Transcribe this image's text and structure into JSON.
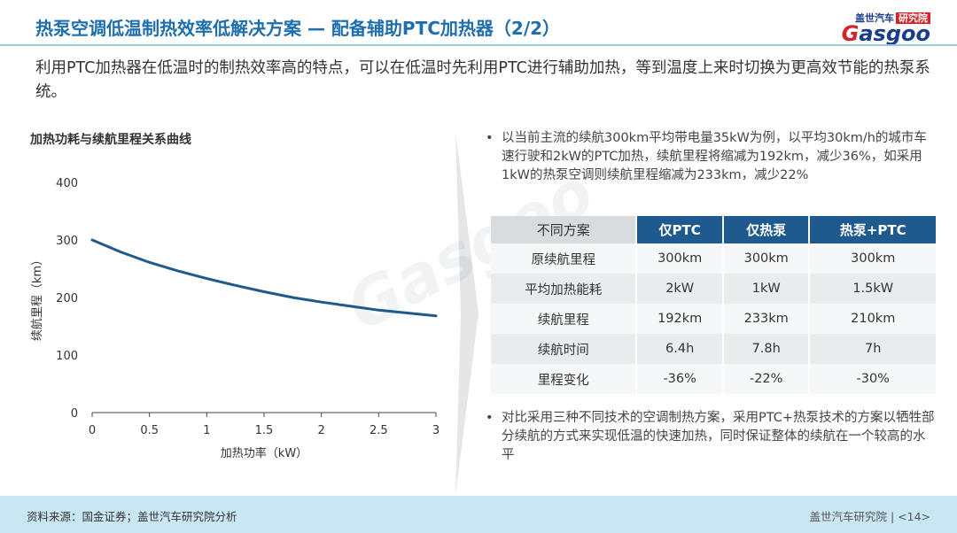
{
  "header": {
    "title": "热泵空调低温制热效率低解决方案 — 配备辅助PTC加热器（2/2）",
    "logo_top_text": "盖世汽车",
    "logo_top_red": "研究院",
    "logo_main": "asgoo",
    "logo_g": "G",
    "brand_color": "#1a3c8c",
    "accent_color": "#d6232a"
  },
  "intro": "利用PTC加热器在低温时的制热效率高的特点，可以在低温时先利用PTC进行辅助加热，等到温度上来时切换为更高效节能的热泵系统。",
  "watermark": "Gasgoo",
  "chart_data": {
    "type": "line",
    "title": "加热功耗与续航里程关系曲线",
    "xlabel": "加热功率（kW）",
    "ylabel": "续航里程（km）",
    "x_ticks": [
      "0",
      "0.5",
      "1",
      "1.5",
      "2",
      "2.5",
      "3"
    ],
    "y_ticks": [
      "0",
      "100",
      "200",
      "300",
      "400"
    ],
    "xlim": [
      0,
      3
    ],
    "ylim": [
      0,
      400
    ],
    "grid": false,
    "series": [
      {
        "color": "#1f5a8f",
        "x": [
          0,
          0.25,
          0.5,
          0.75,
          1.0,
          1.25,
          1.5,
          1.75,
          2.0,
          2.25,
          2.5,
          2.75,
          3.0
        ],
        "y": [
          300,
          279,
          261,
          246,
          233,
          221,
          210,
          200,
          192,
          185,
          178,
          173,
          168
        ]
      }
    ]
  },
  "bullets": {
    "dot": "•",
    "first": "以当前主流的续航300km平均带电量35kW为例，以平均30km/h的城市车速行驶和2kW的PTC加热，续航里程将缩减为192km，减少36%，如采用1kW的热泵空调则续航里程缩减为233km，减少22%",
    "second": "对比采用三种不同技术的空调制热方案，采用PTC+热泵技术的方案以牺牲部分续航的方式来实现低温的快速加热，同时保证整体的续航在一个较高的水平"
  },
  "table": {
    "headers": [
      "不同方案",
      "仅PTC",
      "仅热泵",
      "热泵+PTC"
    ],
    "rows": [
      [
        "原续航里程",
        "300km",
        "300km",
        "300km"
      ],
      [
        "平均加热能耗",
        "2kW",
        "1kW",
        "1.5kW"
      ],
      [
        "续航里程",
        "192km",
        "233km",
        "210km"
      ],
      [
        "续航时间",
        "6.4h",
        "7.8h",
        "7h"
      ],
      [
        "里程变化",
        "-36%",
        "-22%",
        "-30%"
      ]
    ]
  },
  "footer": {
    "source": "资料来源：国金证券；盖世汽车研究院分析",
    "org": "盖世汽车研究院",
    "page": "<14>"
  }
}
